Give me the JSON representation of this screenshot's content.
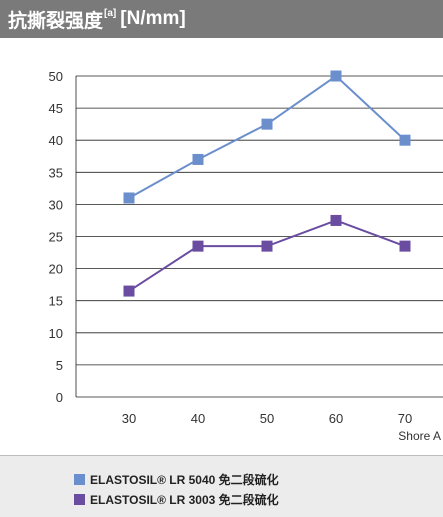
{
  "header": {
    "title": "抗撕裂强度",
    "note": "[a]",
    "unit": "[N/mm]"
  },
  "chart_data": {
    "type": "line",
    "x": [
      30,
      40,
      50,
      60,
      70
    ],
    "xlabel": "Shore A",
    "ylabel": "",
    "ylim": [
      0,
      50
    ],
    "yticks": [
      0,
      5,
      10,
      15,
      20,
      25,
      30,
      35,
      40,
      45,
      50
    ],
    "grid": "horizontal",
    "series": [
      {
        "name": "ELASTOSIL® LR 5040 免二段硫化",
        "color": "#6a8fcc",
        "values": [
          31,
          37,
          42.5,
          50,
          40
        ]
      },
      {
        "name": "ELASTOSIL® LR 3003 免二段硫化",
        "color": "#6a4da0",
        "values": [
          16.5,
          23.5,
          23.5,
          27.5,
          23.5
        ]
      }
    ],
    "legend_position": "bottom"
  },
  "legend": [
    {
      "label": "ELASTOSIL® LR 5040 免二段硫化",
      "color": "#6a8fcc"
    },
    {
      "label": "ELASTOSIL® LR 3003 免二段硫化",
      "color": "#6a4da0"
    }
  ]
}
